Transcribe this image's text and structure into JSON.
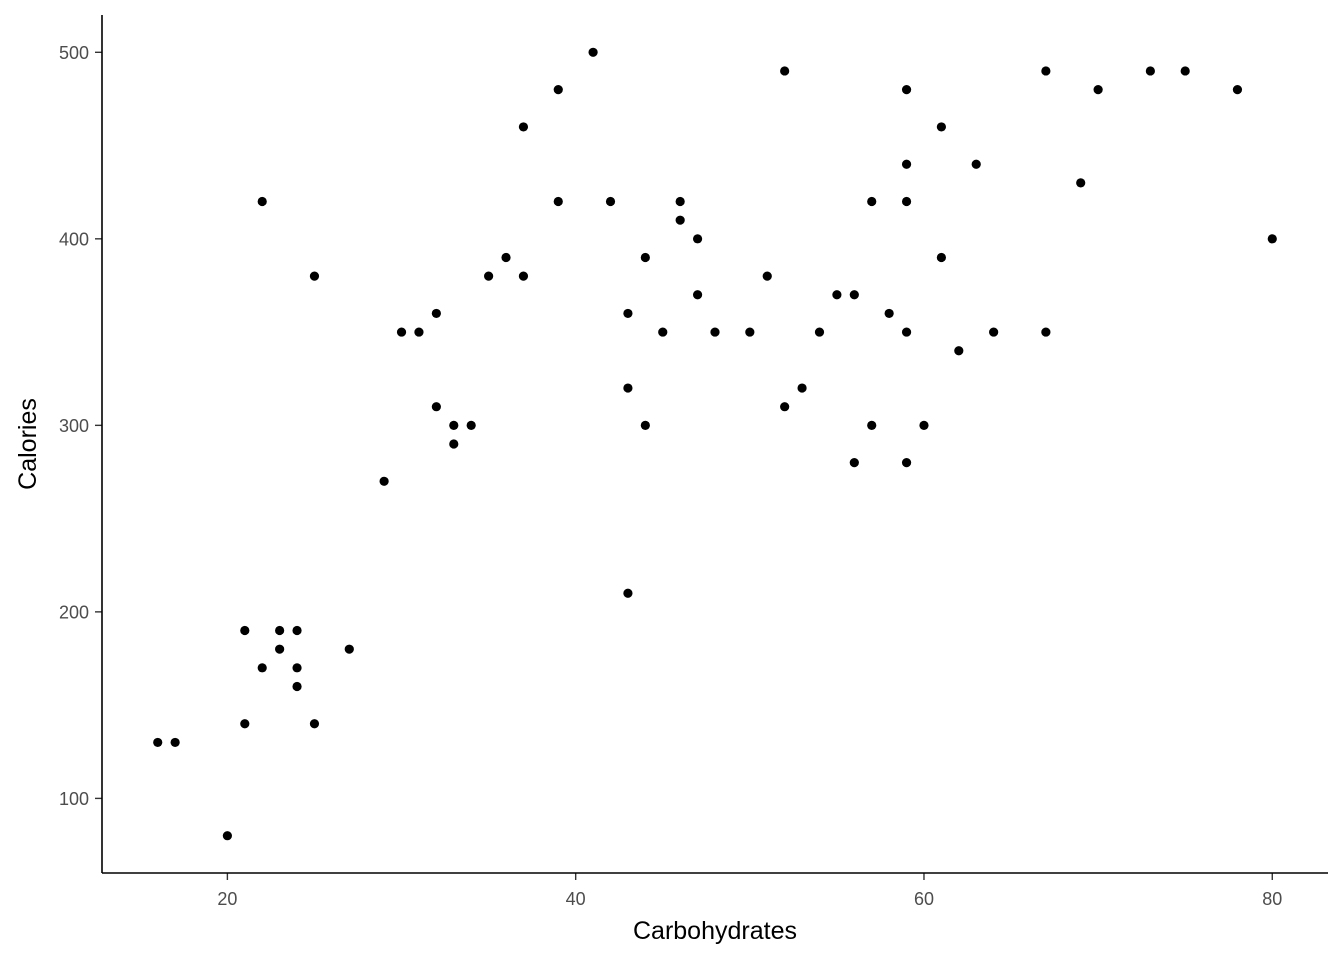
{
  "chart_data": {
    "type": "scatter",
    "title": "",
    "xlabel": "Carbohydrates",
    "ylabel": "Calories",
    "xlim": [
      12.8,
      83.2
    ],
    "ylim": [
      60,
      520
    ],
    "xticks": [
      20,
      40,
      60,
      80
    ],
    "yticks": [
      100,
      200,
      300,
      400,
      500
    ],
    "grid": false,
    "legend": "none",
    "point_color": "#000000",
    "points": [
      {
        "x": 16,
        "y": 130
      },
      {
        "x": 17,
        "y": 130
      },
      {
        "x": 20,
        "y": 80
      },
      {
        "x": 21,
        "y": 190
      },
      {
        "x": 21,
        "y": 140
      },
      {
        "x": 22,
        "y": 420
      },
      {
        "x": 22,
        "y": 170
      },
      {
        "x": 23,
        "y": 190
      },
      {
        "x": 23,
        "y": 180
      },
      {
        "x": 24,
        "y": 190
      },
      {
        "x": 24,
        "y": 170
      },
      {
        "x": 24,
        "y": 160
      },
      {
        "x": 25,
        "y": 380
      },
      {
        "x": 25,
        "y": 140
      },
      {
        "x": 27,
        "y": 180
      },
      {
        "x": 29,
        "y": 270
      },
      {
        "x": 30,
        "y": 350
      },
      {
        "x": 31,
        "y": 350
      },
      {
        "x": 32,
        "y": 360
      },
      {
        "x": 32,
        "y": 310
      },
      {
        "x": 33,
        "y": 300
      },
      {
        "x": 33,
        "y": 290
      },
      {
        "x": 34,
        "y": 300
      },
      {
        "x": 35,
        "y": 380
      },
      {
        "x": 36,
        "y": 390
      },
      {
        "x": 37,
        "y": 460
      },
      {
        "x": 37,
        "y": 380
      },
      {
        "x": 39,
        "y": 480
      },
      {
        "x": 39,
        "y": 420
      },
      {
        "x": 41,
        "y": 500
      },
      {
        "x": 42,
        "y": 420
      },
      {
        "x": 43,
        "y": 360
      },
      {
        "x": 43,
        "y": 320
      },
      {
        "x": 43,
        "y": 210
      },
      {
        "x": 44,
        "y": 390
      },
      {
        "x": 44,
        "y": 300
      },
      {
        "x": 45,
        "y": 350
      },
      {
        "x": 46,
        "y": 420
      },
      {
        "x": 46,
        "y": 410
      },
      {
        "x": 47,
        "y": 400
      },
      {
        "x": 47,
        "y": 370
      },
      {
        "x": 48,
        "y": 350
      },
      {
        "x": 50,
        "y": 350
      },
      {
        "x": 51,
        "y": 380
      },
      {
        "x": 52,
        "y": 490
      },
      {
        "x": 52,
        "y": 310
      },
      {
        "x": 53,
        "y": 320
      },
      {
        "x": 54,
        "y": 350
      },
      {
        "x": 55,
        "y": 370
      },
      {
        "x": 56,
        "y": 370
      },
      {
        "x": 56,
        "y": 280
      },
      {
        "x": 57,
        "y": 420
      },
      {
        "x": 57,
        "y": 300
      },
      {
        "x": 58,
        "y": 360
      },
      {
        "x": 59,
        "y": 480
      },
      {
        "x": 59,
        "y": 440
      },
      {
        "x": 59,
        "y": 420
      },
      {
        "x": 59,
        "y": 350
      },
      {
        "x": 59,
        "y": 280
      },
      {
        "x": 60,
        "y": 300
      },
      {
        "x": 61,
        "y": 460
      },
      {
        "x": 61,
        "y": 390
      },
      {
        "x": 62,
        "y": 340
      },
      {
        "x": 63,
        "y": 440
      },
      {
        "x": 64,
        "y": 350
      },
      {
        "x": 67,
        "y": 490
      },
      {
        "x": 67,
        "y": 350
      },
      {
        "x": 69,
        "y": 430
      },
      {
        "x": 70,
        "y": 480
      },
      {
        "x": 73,
        "y": 490
      },
      {
        "x": 75,
        "y": 490
      },
      {
        "x": 78,
        "y": 480
      },
      {
        "x": 80,
        "y": 400
      }
    ]
  }
}
